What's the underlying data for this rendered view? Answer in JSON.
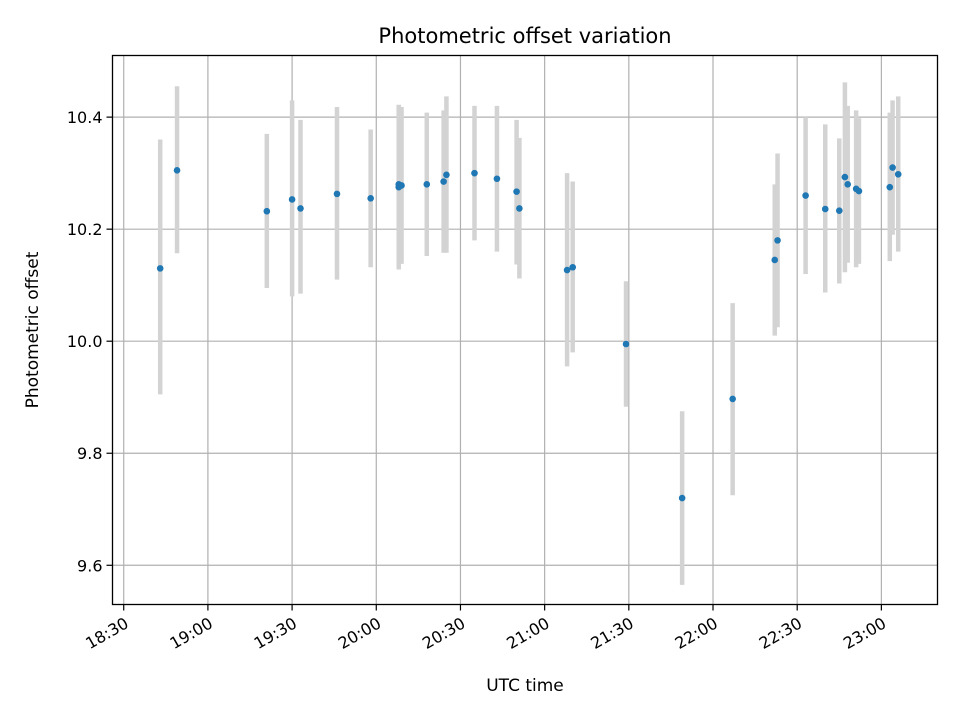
{
  "chart_data": {
    "type": "scatter",
    "title": "Photometric offset variation",
    "xlabel": "UTC time",
    "ylabel": "Photometric offset",
    "grid": true,
    "point_color": "#1f77b4",
    "errorbar_color": "#d3d3d3",
    "x_ticks": [
      "18:30",
      "19:00",
      "19:30",
      "20:00",
      "20:30",
      "21:00",
      "21:30",
      "22:00",
      "22:30",
      "23:00"
    ],
    "y_ticks": [
      "9.6",
      "9.8",
      "10.0",
      "10.2",
      "10.4"
    ],
    "xlim": [
      "18:26",
      "23:20"
    ],
    "ylim": [
      9.53,
      10.51
    ],
    "points": [
      {
        "x": "18:43",
        "y": 10.13,
        "ylow": 9.905,
        "yhigh": 10.36
      },
      {
        "x": "18:49",
        "y": 10.305,
        "ylow": 10.157,
        "yhigh": 10.455
      },
      {
        "x": "19:21",
        "y": 10.232,
        "ylow": 10.095,
        "yhigh": 10.37
      },
      {
        "x": "19:30",
        "y": 10.253,
        "ylow": 10.08,
        "yhigh": 10.43
      },
      {
        "x": "19:33",
        "y": 10.237,
        "ylow": 10.085,
        "yhigh": 10.395
      },
      {
        "x": "19:46",
        "y": 10.263,
        "ylow": 10.11,
        "yhigh": 10.418
      },
      {
        "x": "19:58",
        "y": 10.255,
        "ylow": 10.132,
        "yhigh": 10.378
      },
      {
        "x": "20:08",
        "y": 10.28,
        "ylow": 10.138,
        "yhigh": 10.422
      },
      {
        "x": "20:08",
        "y": 10.275,
        "ylow": 10.128,
        "yhigh": 10.42
      },
      {
        "x": "20:09",
        "y": 10.278,
        "ylow": 10.138,
        "yhigh": 10.418
      },
      {
        "x": "20:18",
        "y": 10.28,
        "ylow": 10.152,
        "yhigh": 10.408
      },
      {
        "x": "20:24",
        "y": 10.285,
        "ylow": 10.158,
        "yhigh": 10.412
      },
      {
        "x": "20:25",
        "y": 10.297,
        "ylow": 10.158,
        "yhigh": 10.437
      },
      {
        "x": "20:35",
        "y": 10.3,
        "ylow": 10.18,
        "yhigh": 10.42
      },
      {
        "x": "20:43",
        "y": 10.29,
        "ylow": 10.16,
        "yhigh": 10.42
      },
      {
        "x": "20:50",
        "y": 10.267,
        "ylow": 10.137,
        "yhigh": 10.395
      },
      {
        "x": "20:51",
        "y": 10.237,
        "ylow": 10.112,
        "yhigh": 10.363
      },
      {
        "x": "21:08",
        "y": 10.127,
        "ylow": 9.955,
        "yhigh": 10.3
      },
      {
        "x": "21:10",
        "y": 10.132,
        "ylow": 9.98,
        "yhigh": 10.285
      },
      {
        "x": "21:29",
        "y": 9.995,
        "ylow": 9.883,
        "yhigh": 10.107
      },
      {
        "x": "21:49",
        "y": 9.72,
        "ylow": 9.565,
        "yhigh": 9.875
      },
      {
        "x": "22:07",
        "y": 9.897,
        "ylow": 9.725,
        "yhigh": 10.068
      },
      {
        "x": "22:22",
        "y": 10.145,
        "ylow": 10.01,
        "yhigh": 10.28
      },
      {
        "x": "22:23",
        "y": 10.18,
        "ylow": 10.025,
        "yhigh": 10.335
      },
      {
        "x": "22:33",
        "y": 10.26,
        "ylow": 10.12,
        "yhigh": 10.4
      },
      {
        "x": "22:40",
        "y": 10.236,
        "ylow": 10.087,
        "yhigh": 10.387
      },
      {
        "x": "22:45",
        "y": 10.233,
        "ylow": 10.103,
        "yhigh": 10.362
      },
      {
        "x": "22:47",
        "y": 10.293,
        "ylow": 10.123,
        "yhigh": 10.462
      },
      {
        "x": "22:48",
        "y": 10.28,
        "ylow": 10.14,
        "yhigh": 10.42
      },
      {
        "x": "22:51",
        "y": 10.272,
        "ylow": 10.132,
        "yhigh": 10.412
      },
      {
        "x": "22:52",
        "y": 10.268,
        "ylow": 10.138,
        "yhigh": 10.398
      },
      {
        "x": "23:03",
        "y": 10.275,
        "ylow": 10.143,
        "yhigh": 10.408
      },
      {
        "x": "23:04",
        "y": 10.31,
        "ylow": 10.19,
        "yhigh": 10.43
      },
      {
        "x": "23:06",
        "y": 10.298,
        "ylow": 10.16,
        "yhigh": 10.437
      }
    ]
  }
}
